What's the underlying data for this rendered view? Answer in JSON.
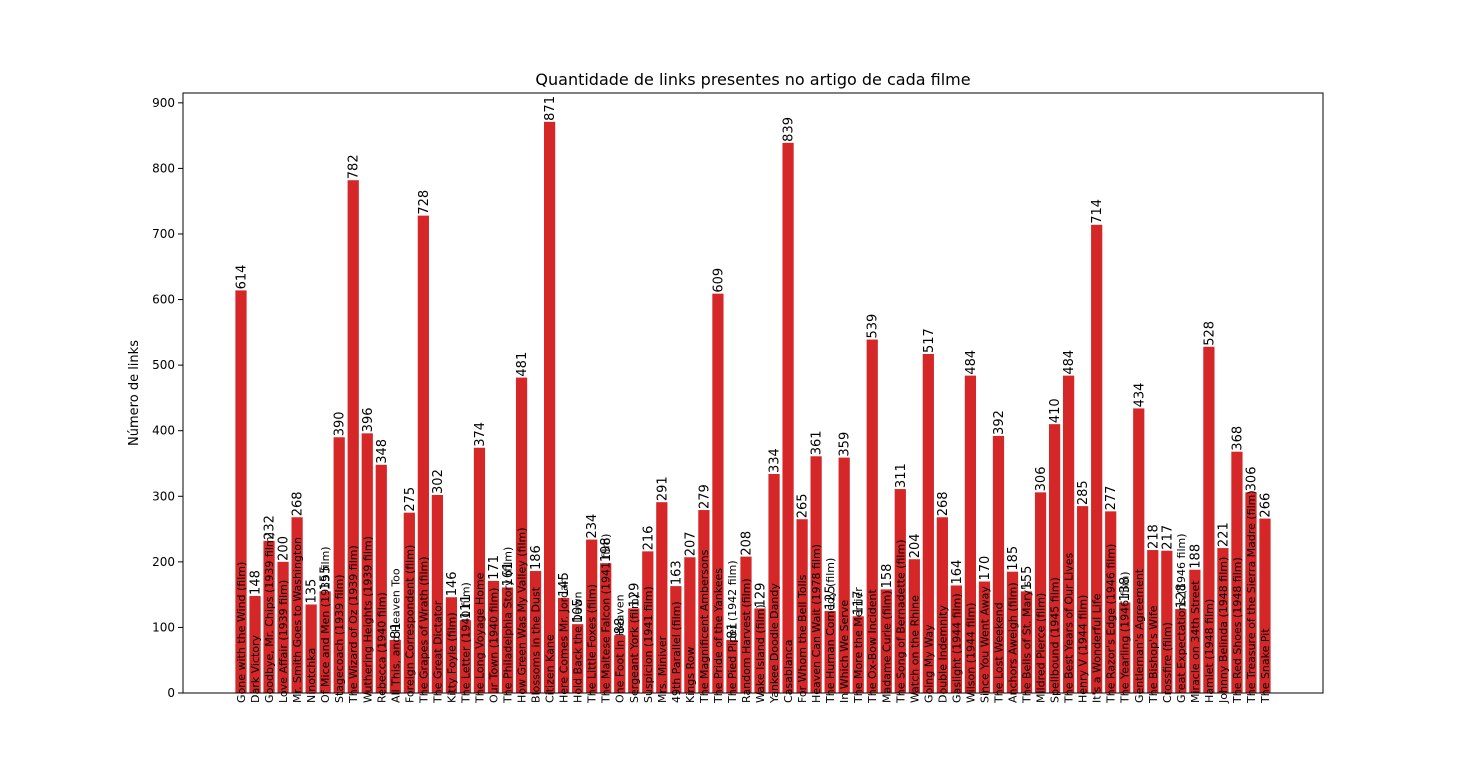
{
  "chart_data": {
    "type": "bar",
    "title": "Quantidade de links presentes no artigo de cada filme",
    "xlabel": "",
    "ylabel": "Número de links",
    "ylim": [
      0,
      915
    ],
    "yticks": [
      0,
      100,
      200,
      300,
      400,
      500,
      600,
      700,
      800,
      900
    ],
    "bar_color": "#d62728",
    "categories": [
      "Gone with the Wind (film)",
      "Dark Victory",
      "Goodbye, Mr. Chips (1939 film)",
      "Love Affair (1939 film)",
      "Mr. Smith Goes to Washington",
      "Ninotchka",
      "Of Mice and Men (1939 film)",
      "Stagecoach (1939 film)",
      "The Wizard of Oz (1939 film)",
      "Wuthering Heights (1939 film)",
      "Rebecca (1940 film)",
      "All This, and Heaven Too",
      "Foreign Correspondent (film)",
      "The Grapes of Wrath (film)",
      "The Great Dictator",
      "Kitty Foyle (film)",
      "The Letter (1940 film)",
      "The Long Voyage Home",
      "Our Town (1940 film)",
      "The Philadelphia Story (film)",
      "How Green Was My Valley (film)",
      "Blossoms in the Dust",
      "Citizen Kane",
      "Here Comes Mr. Jordan",
      "Hold Back the Dawn",
      "The Little Foxes (film)",
      "The Maltese Falcon (1941 film)",
      "One Foot in Heaven",
      "Sergeant York (film)",
      "Suspicion (1941 film)",
      "Mrs. Miniver",
      "49th Parallel (film)",
      "Kings Row",
      "The Magnificent Ambersons",
      "The Pride of the Yankees",
      "The Pied Piper (1942 film)",
      "Random Harvest (film)",
      "Wake Island (film)",
      "Yankee Doodle Dandy",
      "Casablanca",
      "For Whom the Bell Tolls",
      "Heaven Can Wait (1978 film)",
      "The Human Comedy (film)",
      "In Which We Serve",
      "The More the Merrier",
      "The Ox-Bow Incident",
      "Madame Curie (film)",
      "The Song of Bernadette (film)",
      "Watch on the Rhine",
      "Going My Way",
      "Double Indemnity",
      "Gaslight (1944 film)",
      "Wilson (1944 film)",
      "Since You Went Away",
      "The Lost Weekend",
      "Anchors Aweigh (film)",
      "The Bells of St. Mary's",
      "Mildred Pierce (film)",
      "Spellbound (1945 film)",
      "The Best Years of Our Lives",
      "Henry V (1944 film)",
      "It's a Wonderful Life",
      "The Razor's Edge (1946 film)",
      "The Yearling (1946 film)",
      "Gentleman's Agreement",
      "The Bishop's Wife",
      "Crossfire (film)",
      "Great Expectations (1946 film)",
      "Miracle on 34th Street",
      "Hamlet (1948 film)",
      "Johnny Belinda (1948 film)",
      "The Red Shoes (1948 film)",
      "The Treasure of the Sierra Madre (film)",
      "The Snake Pit"
    ],
    "values": [
      614,
      148,
      232,
      200,
      268,
      135,
      155,
      390,
      782,
      396,
      348,
      81,
      275,
      728,
      302,
      146,
      111,
      374,
      171,
      161,
      481,
      186,
      871,
      145,
      105,
      234,
      198,
      88,
      129,
      216,
      291,
      163,
      207,
      279,
      609,
      81,
      208,
      129,
      334,
      839,
      265,
      361,
      125,
      359,
      117,
      539,
      158,
      311,
      204,
      517,
      268,
      164,
      484,
      170,
      392,
      185,
      155,
      306,
      410,
      484,
      285,
      714,
      277,
      138,
      434,
      218,
      217,
      128,
      188,
      528,
      221,
      368,
      306,
      266
    ]
  }
}
